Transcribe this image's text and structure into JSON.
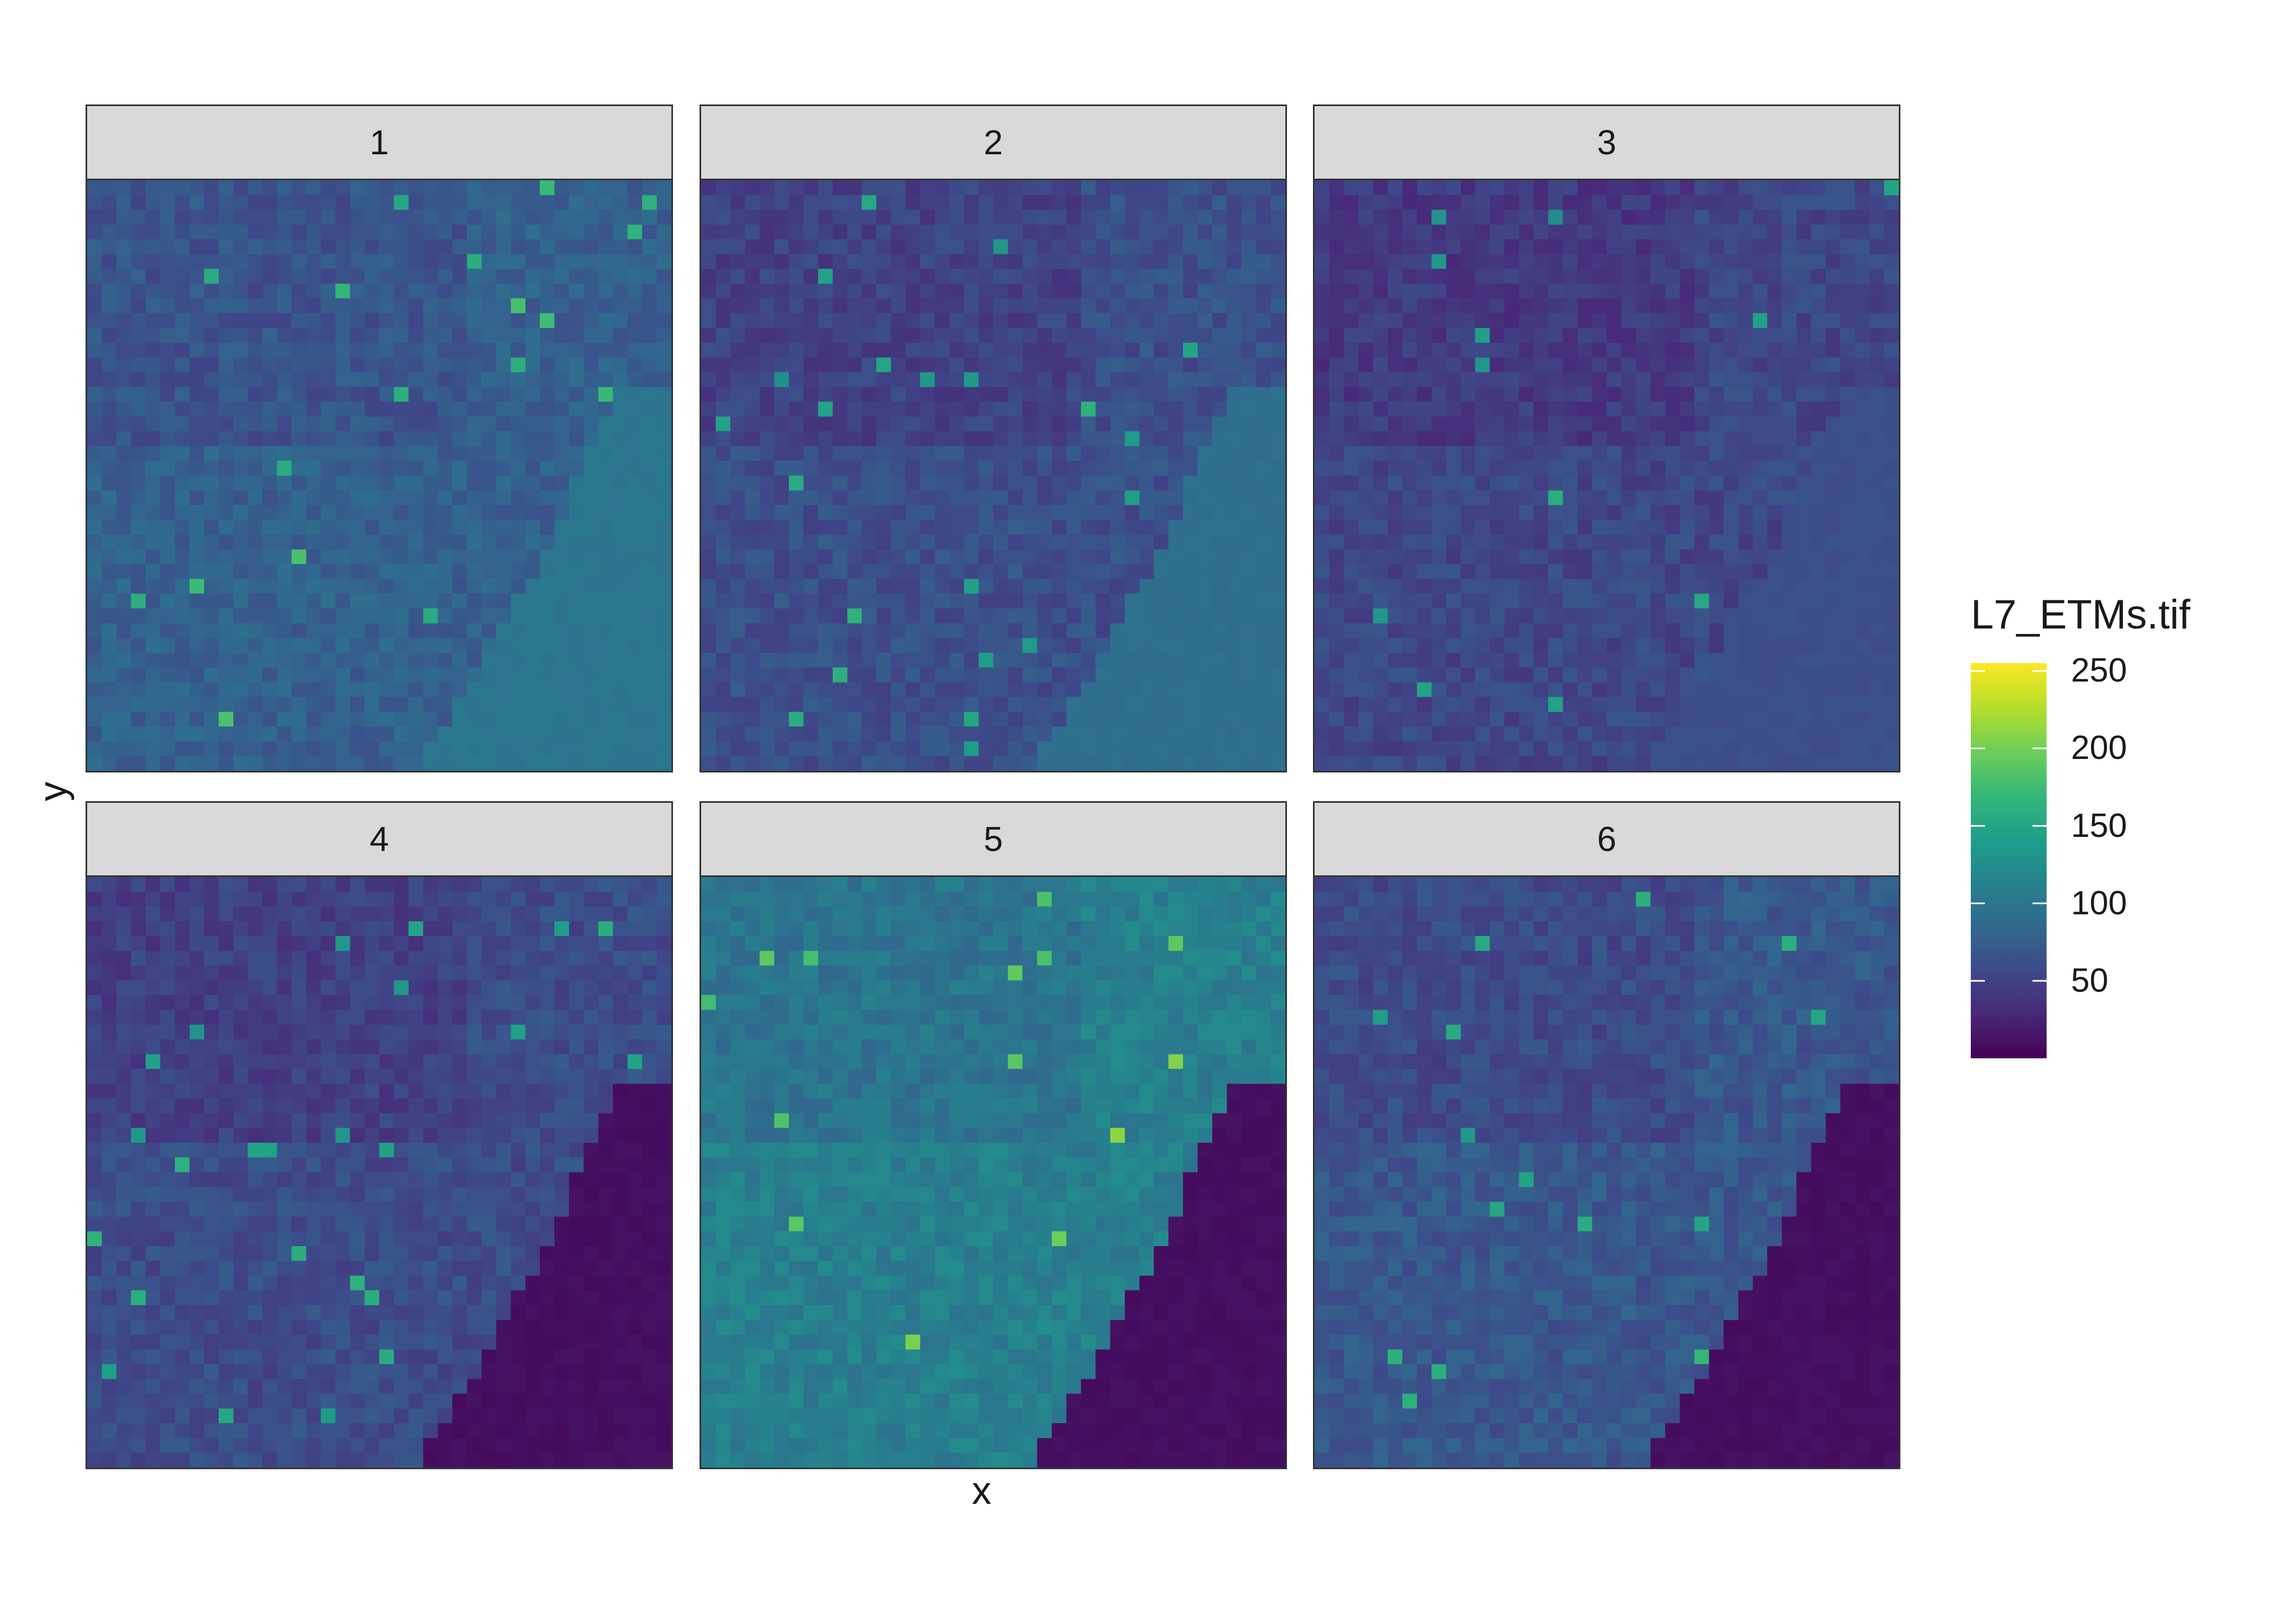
{
  "chart_data": {
    "type": "heatmap",
    "title": "",
    "xlabel": "x",
    "ylabel": "y",
    "facets": [
      "1",
      "2",
      "3",
      "4",
      "5",
      "6"
    ],
    "legend": {
      "title": "L7_ETMs.tif",
      "position": "right",
      "range": [
        0,
        255
      ],
      "ticks": [
        50,
        100,
        150,
        200,
        250
      ],
      "colormap": "viridis",
      "colors": [
        "#440154",
        "#482878",
        "#3e4989",
        "#31688e",
        "#26828e",
        "#1f9e89",
        "#35b779",
        "#6ece58",
        "#b5de2b",
        "#fde725"
      ]
    },
    "panel_mean_values": {
      "1": {
        "land": 78,
        "sea": 100
      },
      "2": {
        "land": 62,
        "sea": 92
      },
      "3": {
        "land": 55,
        "sea": 62
      },
      "4": {
        "land": 60,
        "sea": 10
      },
      "5": {
        "land": 110,
        "sea": 10
      },
      "6": {
        "land": 70,
        "sea": 10
      }
    },
    "grid": false
  }
}
